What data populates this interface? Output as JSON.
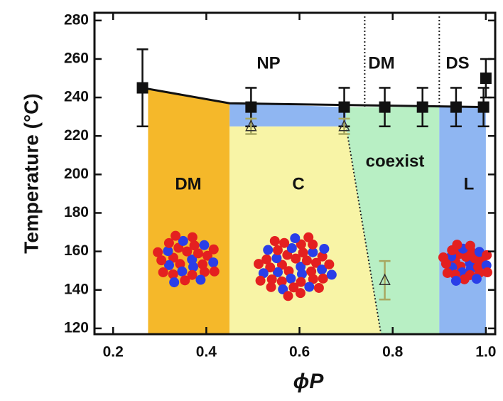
{
  "chart_data": {
    "type": "scatter",
    "xlabel": "ϕP",
    "ylabel": "Temperature (°C)",
    "xlim": [
      0.16,
      1.02
    ],
    "ylim": [
      117,
      284
    ],
    "xticks": [
      0.2,
      0.4,
      0.6,
      0.8,
      {
        "value": 1,
        "label": "1.0"
      }
    ],
    "yticks": [
      120,
      140,
      160,
      180,
      200,
      220,
      240,
      260,
      280
    ],
    "regions": [
      {
        "label": "DM",
        "color": "#f5b82a",
        "points": [
          [
            0.275,
            117
          ],
          [
            0.275,
            244
          ],
          [
            0.45,
            237
          ],
          [
            0.45,
            117
          ]
        ]
      },
      {
        "label": "C",
        "color": "#f8f4a6",
        "points": [
          [
            0.45,
            117
          ],
          [
            0.45,
            225
          ],
          [
            0.7,
            225
          ],
          [
            0.775,
            117
          ]
        ]
      },
      {
        "label": "coexist",
        "color": "#b8efc4",
        "points": [
          [
            0.775,
            117
          ],
          [
            0.7,
            225
          ],
          [
            0.7,
            235
          ],
          [
            0.9,
            235
          ],
          [
            0.9,
            117
          ]
        ]
      },
      {
        "label": "L",
        "color": "#8fb6f2",
        "points": [
          [
            0.9,
            117
          ],
          [
            0.9,
            235
          ],
          [
            1.0,
            235
          ],
          [
            1.0,
            117
          ]
        ]
      },
      {
        "color": "#8fb6f2",
        "points": [
          [
            0.45,
            225
          ],
          [
            0.45,
            237
          ],
          [
            0.7,
            235
          ],
          [
            0.7,
            225
          ]
        ]
      }
    ],
    "boundary_x": [
      0.74,
      0.9
    ],
    "transition_line": {
      "x": [
        0.263,
        0.45,
        1.0
      ],
      "y": [
        245,
        237,
        235
      ]
    },
    "series": [
      {
        "marker": "square",
        "color": "#111111",
        "x": [
          0.263,
          0.496,
          0.696,
          0.783,
          0.864,
          0.936,
          0.995,
          1.0
        ],
        "y": [
          245,
          235,
          235,
          235,
          235,
          235,
          235,
          250
        ],
        "yerr": [
          20,
          10,
          10,
          10,
          10,
          10,
          10,
          10
        ]
      },
      {
        "marker": "triangle",
        "color": "#a8a860",
        "x": [
          0.496,
          0.696,
          0.783
        ],
        "y": [
          225,
          225,
          145
        ],
        "yerr": [
          4,
          4,
          10
        ]
      }
    ],
    "annotations": [
      "NP",
      "DM",
      "DS",
      "DM",
      "C",
      "coexist",
      "L"
    ]
  }
}
